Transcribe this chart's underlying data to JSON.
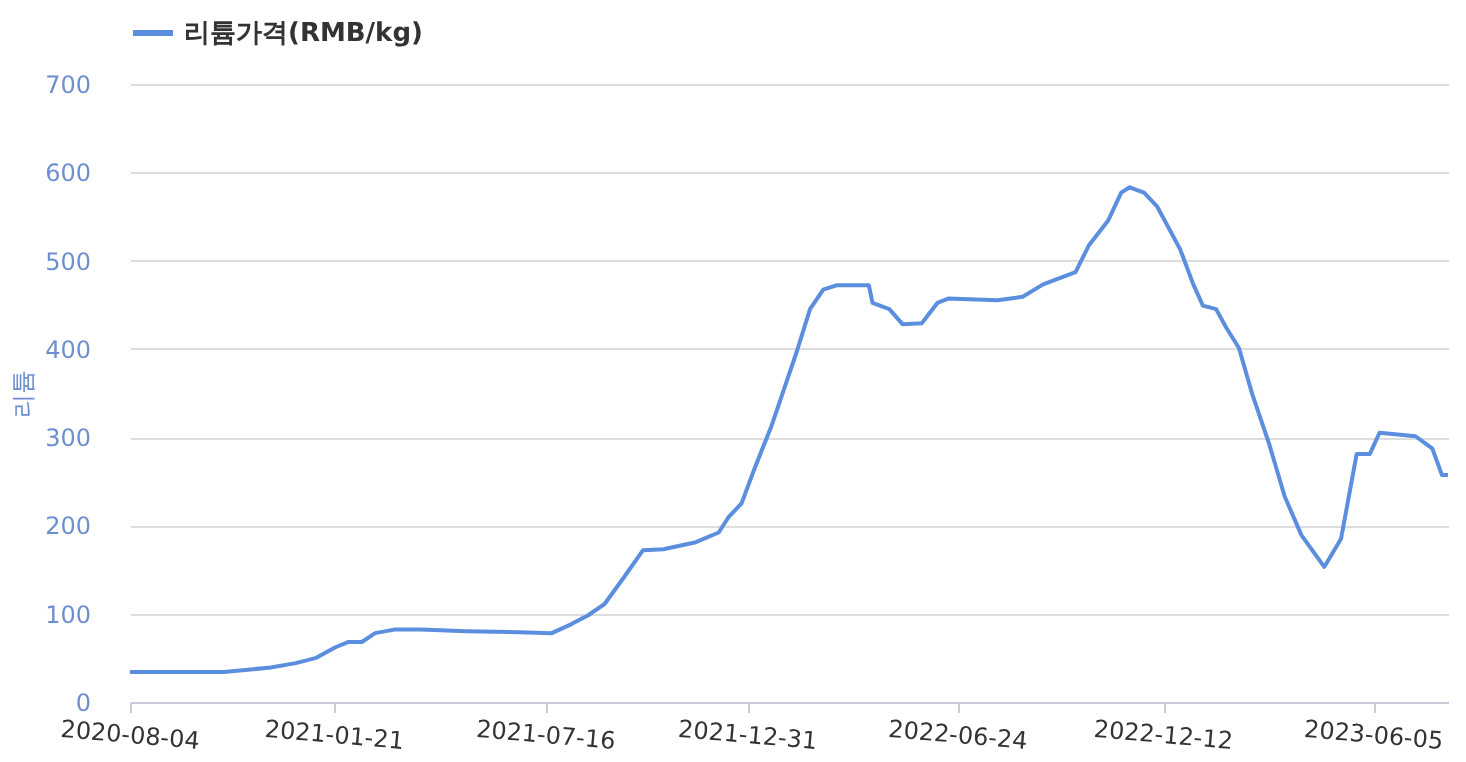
{
  "chart_data": {
    "type": "line",
    "ylabel": "리튬",
    "legend": "top",
    "x": [
      "2020-08-04",
      "2020-10-21",
      "2020-11-29",
      "2020-12-20",
      "2021-01-06",
      "2021-01-22",
      "2021-02-02",
      "2021-02-13",
      "2021-02-24",
      "2021-03-12",
      "2021-04-03",
      "2021-05-11",
      "2021-06-24",
      "2021-07-21",
      "2021-08-06",
      "2021-08-20",
      "2021-09-03",
      "2021-09-19",
      "2021-10-05",
      "2021-10-22",
      "2021-11-18",
      "2021-12-07",
      "2021-12-15",
      "2021-12-26",
      "2022-01-06",
      "2022-01-20",
      "2022-01-30",
      "2022-02-10",
      "2022-02-21",
      "2022-03-04",
      "2022-03-15",
      "2022-04-11",
      "2022-04-14",
      "2022-04-28",
      "2022-05-09",
      "2022-05-25",
      "2022-06-07",
      "2022-06-16",
      "2022-07-27",
      "2022-08-17",
      "2022-09-03",
      "2022-09-30",
      "2022-10-11",
      "2022-10-27",
      "2022-11-07",
      "2022-11-14",
      "2022-11-26",
      "2022-12-07",
      "2022-12-26",
      "2023-01-06",
      "2023-01-14",
      "2023-01-25",
      "2023-02-02",
      "2023-02-13",
      "2023-02-24",
      "2023-03-10",
      "2023-03-23",
      "2023-04-06",
      "2023-04-25",
      "2023-05-09",
      "2023-05-22",
      "2023-06-02",
      "2023-06-10",
      "2023-07-10",
      "2023-07-24",
      "2023-08-01",
      "2023-08-06"
    ],
    "series": [
      {
        "name": "리튬가격(RMB/kg)",
        "color": "#5b8ede",
        "values": [
          34,
          34,
          39,
          44,
          50,
          62,
          68,
          68,
          78,
          82,
          82,
          80,
          79,
          78,
          88,
          98,
          111,
          141,
          172,
          173,
          181,
          192,
          209,
          225,
          265,
          313,
          353,
          397,
          445,
          467,
          472,
          472,
          452,
          445,
          428,
          429,
          452,
          457,
          455,
          459,
          473,
          487,
          517,
          545,
          577,
          583,
          577,
          561,
          513,
          473,
          449,
          445,
          425,
          401,
          349,
          293,
          233,
          189,
          153,
          185,
          281,
          281,
          305,
          301,
          287,
          257,
          257
        ]
      }
    ],
    "xlim": [
      "2020-08-04",
      "2023-08-06"
    ],
    "xticks": [
      "2020-08-04",
      "2021-01-21",
      "2021-07-16",
      "2021-12-31",
      "2022-06-24",
      "2022-12-12",
      "2023-06-05"
    ],
    "ylim": [
      0,
      700
    ],
    "yticks": [
      0,
      100,
      200,
      300,
      400,
      500,
      600,
      700
    ],
    "grid": "y",
    "marker": "none",
    "line_style": "solid"
  }
}
